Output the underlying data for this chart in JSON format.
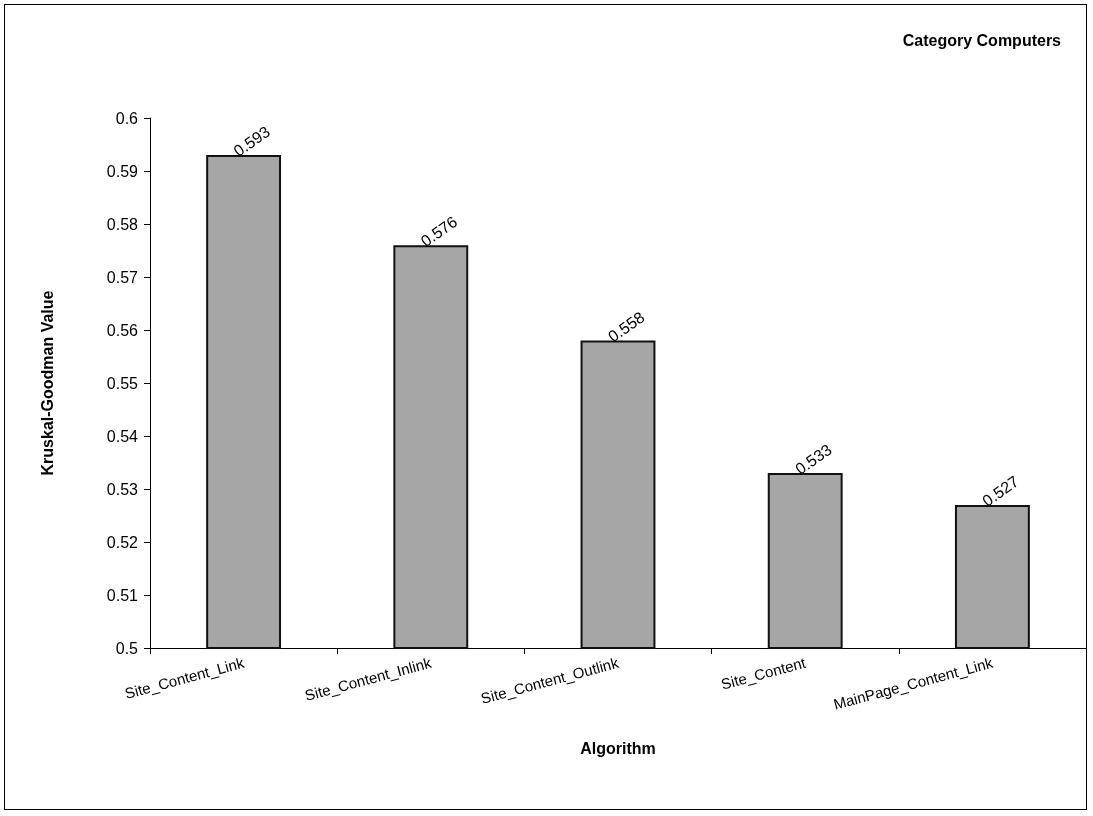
{
  "chart_data": {
    "type": "bar",
    "title": "Category Computers",
    "xlabel": "Algorithm",
    "ylabel": "Kruskal-Goodman Value",
    "categories": [
      "Site_Content_Link",
      "Site_Content_Inlink",
      "Site_Content_Outlink",
      "Site_Content",
      "MainPage_Content_Link"
    ],
    "values": [
      0.593,
      0.576,
      0.558,
      0.533,
      0.527
    ],
    "color": "#a6a6a6",
    "ylim": [
      0.5,
      0.6
    ],
    "yticks": [
      0.5,
      0.51,
      0.52,
      0.53,
      0.54,
      0.55,
      0.56,
      0.57,
      0.58,
      0.59,
      0.6
    ],
    "grid": false,
    "data_labels": true
  }
}
